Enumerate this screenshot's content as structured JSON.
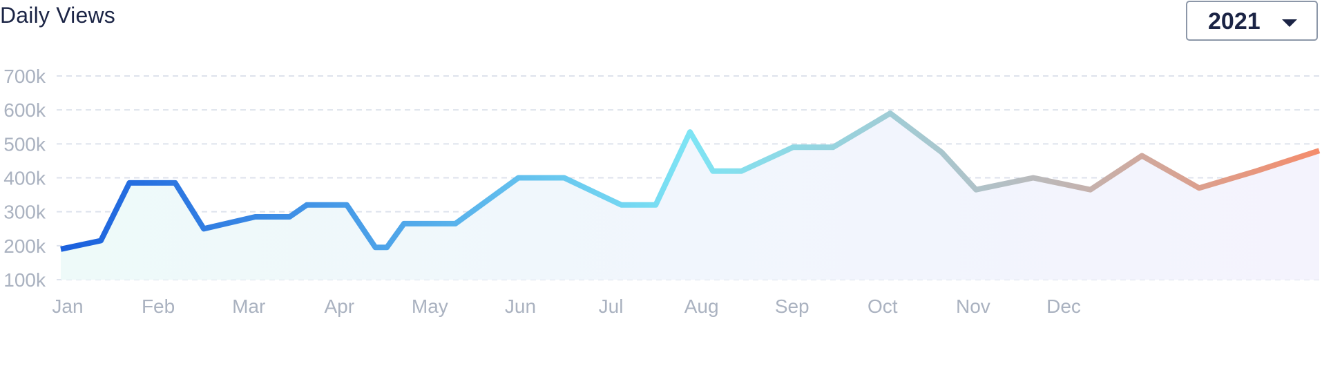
{
  "header": {
    "title": "Daily Views",
    "year_select": {
      "value": "2021"
    }
  },
  "chart_data": {
    "type": "line",
    "title": "Daily Views",
    "xlabel": "",
    "ylabel": "",
    "x_ticks": [
      "Jan",
      "Feb",
      "Mar",
      "Apr",
      "May",
      "Jun",
      "Jul",
      "Aug",
      "Sep",
      "Oct",
      "Nov",
      "Dec"
    ],
    "y_ticks": [
      "100k",
      "200k",
      "300k",
      "400k",
      "500k",
      "600k",
      "700k"
    ],
    "ylim": [
      100000,
      700000
    ],
    "xlim": [
      0,
      11
    ],
    "grid": true,
    "gradient_colors": [
      "#1a5fdd",
      "#7ee4f4",
      "#b4bfc4",
      "#f48c6c"
    ],
    "series": [
      {
        "x": [
          0,
          0.35,
          0.6,
          1.0,
          1.25,
          1.7,
          2.0,
          2.15,
          2.5,
          2.75,
          2.85,
          3.0,
          3.45,
          4.0,
          4.4,
          4.9,
          5.2,
          5.5,
          5.7,
          5.95,
          6.4,
          6.75,
          7.25,
          7.7,
          8.0,
          8.5,
          9.0,
          9.45,
          9.95,
          10.45,
          11.0
        ],
        "y": [
          190000,
          215000,
          385000,
          385000,
          250000,
          285000,
          285000,
          320000,
          320000,
          195000,
          195000,
          265000,
          265000,
          400000,
          400000,
          320000,
          320000,
          535000,
          420000,
          420000,
          490000,
          490000,
          590000,
          475000,
          365000,
          400000,
          365000,
          465000,
          370000,
          420000,
          480000
        ]
      }
    ]
  }
}
